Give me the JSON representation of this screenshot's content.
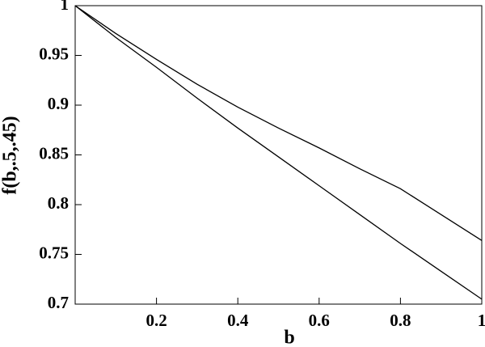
{
  "chart_data": {
    "type": "line",
    "x_label": "b",
    "y_label": "f(b,.5,.45)",
    "x": [
      0,
      0.1,
      0.2,
      0.3,
      0.4,
      0.5,
      0.6,
      0.7,
      0.8,
      0.9,
      1
    ],
    "series": [
      {
        "color": "#000000",
        "values": [
          1,
          0.972,
          0.946,
          0.921,
          0.898,
          0.877,
          0.857,
          0.836,
          0.816,
          0.79,
          0.764
        ]
      },
      {
        "color": "#000000",
        "values": [
          1,
          0.968,
          0.938,
          0.907,
          0.877,
          0.848,
          0.819,
          0.79,
          0.761,
          0.733,
          0.705
        ]
      }
    ],
    "xlim": [
      0,
      1
    ],
    "xticks": [
      0.2,
      0.4,
      0.6,
      0.8,
      1
    ],
    "ylim": [
      0.7,
      1
    ],
    "yticks": [
      0.7,
      0.75,
      0.8,
      0.85,
      0.9,
      0.95,
      1
    ]
  }
}
